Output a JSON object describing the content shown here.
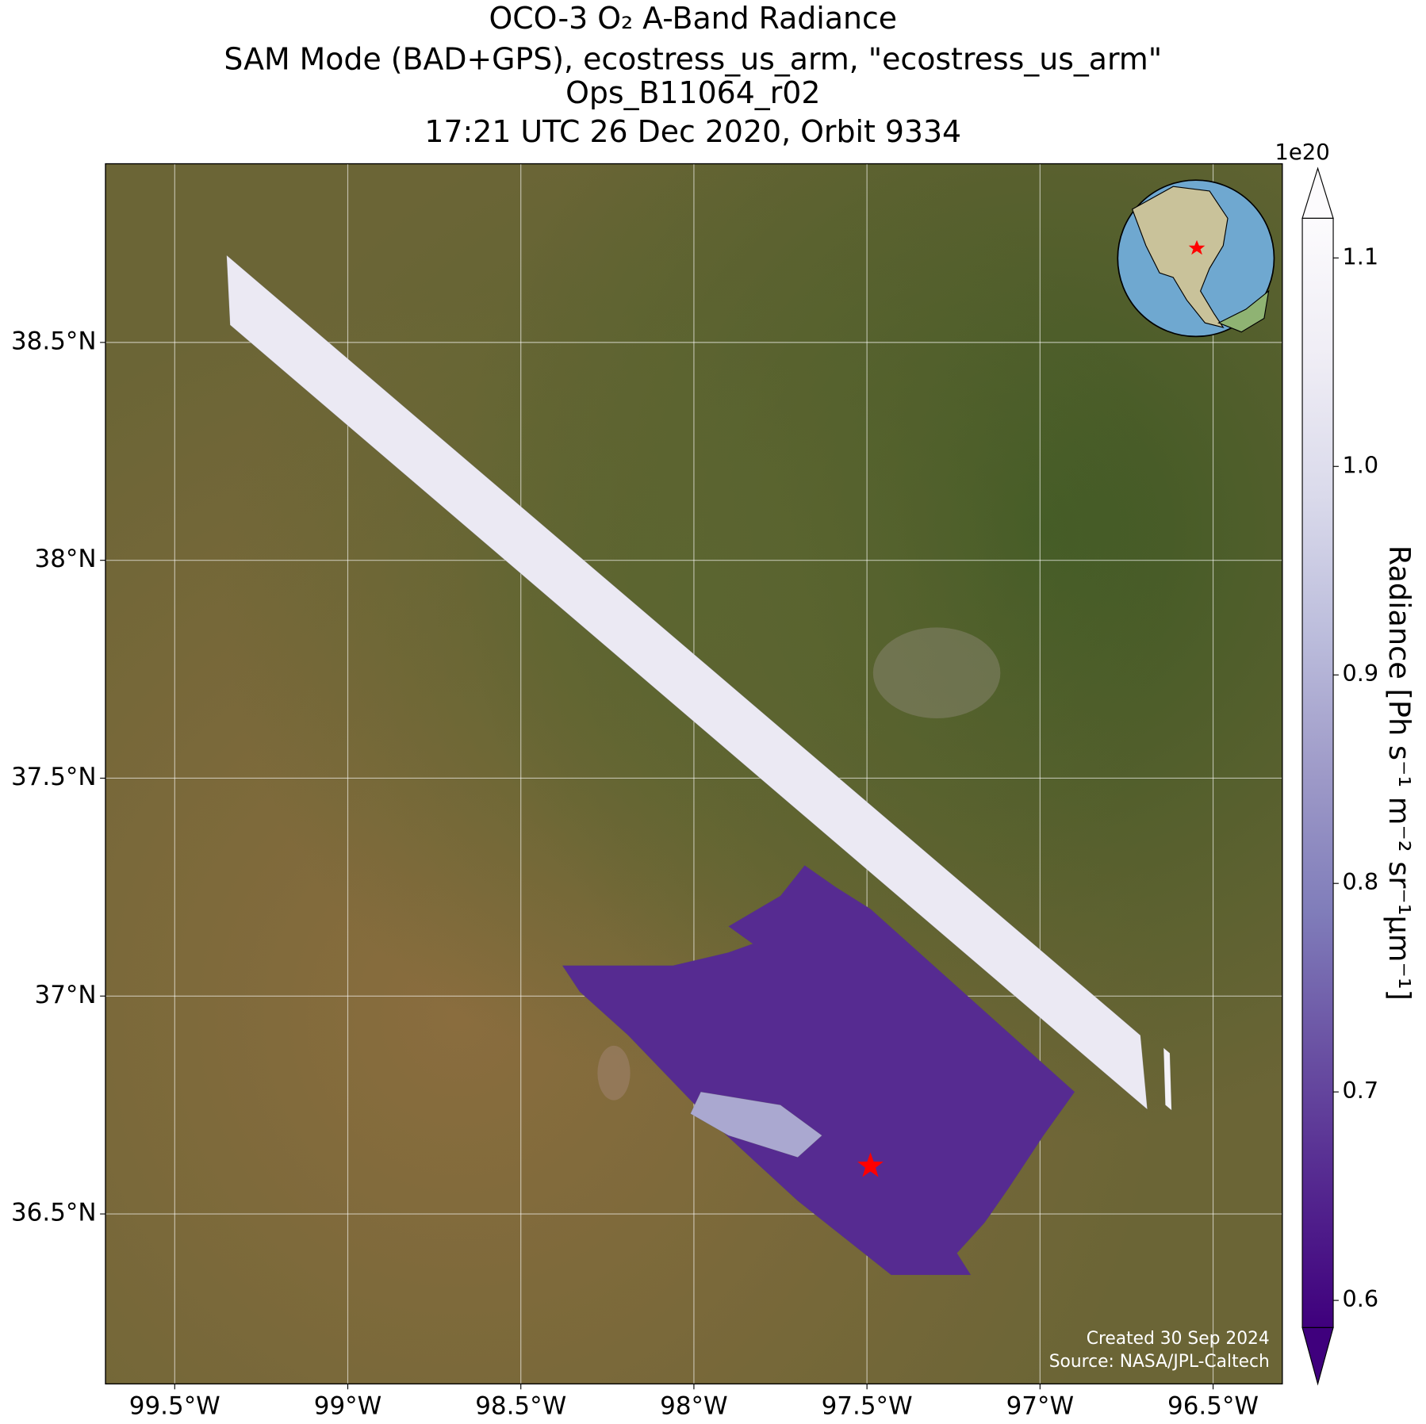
{
  "chart_data": {
    "type": "map",
    "title": [
      "OCO-3 O₂ A-Band Radiance",
      "SAM Mode (BAD+GPS), ecostress_us_arm, \"ecostress_us_arm\"",
      "Ops_B11064_r02",
      "17:21 UTC 26 Dec 2020, Orbit 9334"
    ],
    "xlim": [
      -99.7,
      -96.3
    ],
    "ylim": [
      36.11,
      38.91
    ],
    "xticks": [
      {
        "value": -99.5,
        "label": "99.5°W"
      },
      {
        "value": -99,
        "label": "99°W"
      },
      {
        "value": -98.5,
        "label": "98.5°W"
      },
      {
        "value": -98,
        "label": "98°W"
      },
      {
        "value": -97.5,
        "label": "97.5°W"
      },
      {
        "value": -97,
        "label": "97°W"
      },
      {
        "value": -96.5,
        "label": "96.5°W"
      }
    ],
    "yticks": [
      {
        "value": 36.5,
        "label": "36.5°N"
      },
      {
        "value": 37,
        "label": "37°N"
      },
      {
        "value": 37.5,
        "label": "37.5°N"
      },
      {
        "value": 38,
        "label": "38°N"
      },
      {
        "value": 38.5,
        "label": "38.5°N"
      }
    ],
    "grid": true,
    "swaths": [
      {
        "lon": [
          -99.35,
          -96.71,
          -96.69,
          -99.34
        ],
        "lat": [
          38.7,
          36.91,
          36.74,
          38.54
        ],
        "value": 1.04
      },
      {
        "lon": [
          -96.643,
          -96.625,
          -96.62,
          -96.638
        ],
        "lat": [
          36.881,
          36.869,
          36.738,
          36.75
        ],
        "value": 1.08
      },
      {
        "lon": [
          -98.38,
          -98.06,
          -97.9,
          -97.83,
          -97.9,
          -97.75,
          -97.68,
          -97.59,
          -97.49,
          -96.9,
          -96.99,
          -97.09,
          -97.16,
          -97.24,
          -97.2,
          -97.43,
          -97.7,
          -97.96,
          -98.19,
          -98.33
        ],
        "lat": [
          37.07,
          37.07,
          37.1,
          37.12,
          37.16,
          37.23,
          37.3,
          37.25,
          37.2,
          36.78,
          36.68,
          36.56,
          36.48,
          36.41,
          36.36,
          36.36,
          36.53,
          36.72,
          36.91,
          37.01
        ],
        "value": 0.66
      },
      {
        "lon": [
          -97.98,
          -97.75,
          -97.63,
          -97.7,
          -97.9,
          -98.01
        ],
        "lat": [
          36.78,
          36.75,
          36.68,
          36.63,
          36.68,
          36.73
        ],
        "value": 0.88
      }
    ],
    "site": {
      "lon": -97.49,
      "lat": 36.61,
      "color": "#ff0000"
    },
    "colormap": [
      "#3f007d",
      "#54278f",
      "#6a51a3",
      "#807dba",
      "#9e9ac8",
      "#bcbddc",
      "#dadaeb",
      "#efedf5",
      "#fcfbfd"
    ],
    "clim": [
      0.587,
      1.119
    ],
    "colorbar_ticks": [
      0.6,
      0.7,
      0.8,
      0.9,
      {
        "value": 1,
        "label": "1.0"
      },
      1.1
    ],
    "colorbar_offset": "1e20",
    "colorbar_label": "Radiance [Ph s⁻¹ m⁻² sr⁻¹μm⁻¹]",
    "footer": [
      "Created 30 Sep 2024",
      "Source: NASA/JPL-Caltech"
    ]
  }
}
